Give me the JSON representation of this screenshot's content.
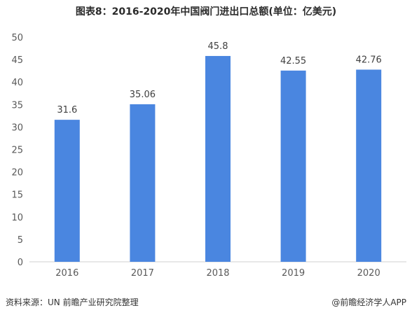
{
  "chart_data": {
    "type": "bar",
    "title": "图表8：2016-2020年中国阀门进出口总额(单位：亿美元)",
    "categories": [
      "2016",
      "2017",
      "2018",
      "2019",
      "2020"
    ],
    "values": [
      31.6,
      35.06,
      45.8,
      42.55,
      42.76
    ],
    "value_labels": [
      "31.6",
      "35.06",
      "45.8",
      "42.55",
      "42.76"
    ],
    "ylim": [
      0,
      50
    ],
    "yticks": [
      0,
      5,
      10,
      15,
      20,
      25,
      30,
      35,
      40,
      45,
      50
    ],
    "grid": false,
    "legend": "none",
    "bar_color": "#4a86e0"
  },
  "footer": {
    "source": "资料来源：UN 前瞻产业研究院整理",
    "credit": "@前瞻经济学人APP"
  }
}
